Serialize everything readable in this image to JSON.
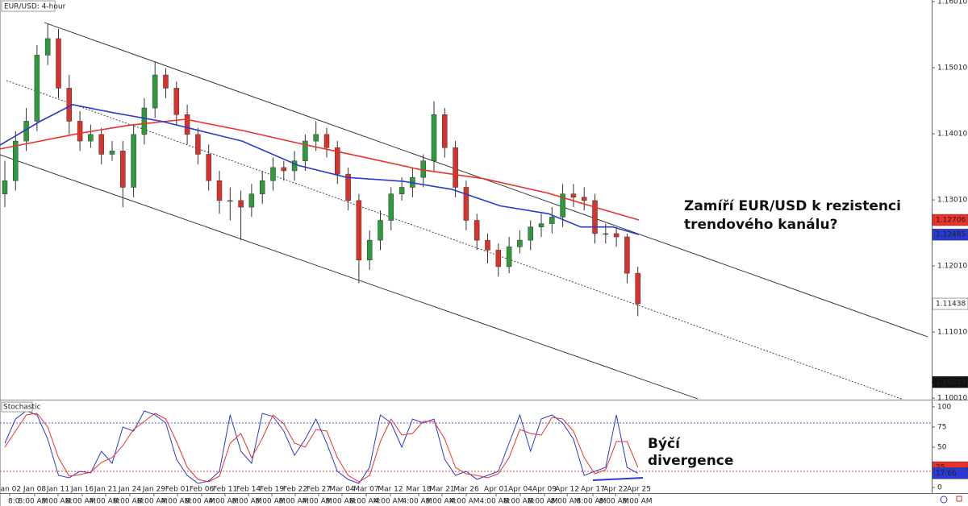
{
  "chart_data": [
    {
      "type": "candlestick",
      "title": "EUR/USD: 4-hour",
      "up_color": "#2f9a3b",
      "down_color": "#d9322c",
      "open": [
        1.131,
        1.133,
        1.139,
        1.142,
        1.152,
        1.1545,
        1.147,
        1.142,
        1.139,
        1.14,
        1.137,
        1.1375,
        1.132,
        1.14,
        1.144,
        1.149,
        1.147,
        1.143,
        1.14,
        1.137,
        1.133,
        1.13,
        1.13,
        1.129,
        1.131,
        1.133,
        1.135,
        1.1345,
        1.136,
        1.139,
        1.14,
        1.138,
        1.134,
        1.13,
        1.121,
        1.124,
        1.127,
        1.131,
        1.132,
        1.1335,
        1.136,
        1.143,
        1.138,
        1.132,
        1.127,
        1.124,
        1.1225,
        1.12,
        1.123,
        1.124,
        1.126,
        1.1265,
        1.1275,
        1.131,
        1.1305,
        1.13,
        1.125,
        1.125,
        1.1245,
        1.119
      ],
      "high": [
        1.136,
        1.1405,
        1.144,
        1.1535,
        1.1567,
        1.156,
        1.149,
        1.1435,
        1.1415,
        1.141,
        1.139,
        1.139,
        1.1415,
        1.1455,
        1.151,
        1.15,
        1.148,
        1.1445,
        1.141,
        1.1385,
        1.1345,
        1.132,
        1.1315,
        1.1325,
        1.1345,
        1.1365,
        1.136,
        1.1375,
        1.14,
        1.142,
        1.141,
        1.139,
        1.135,
        1.131,
        1.1255,
        1.1285,
        1.132,
        1.1335,
        1.135,
        1.137,
        1.145,
        1.144,
        1.139,
        1.133,
        1.128,
        1.125,
        1.1235,
        1.1245,
        1.1255,
        1.127,
        1.128,
        1.129,
        1.1325,
        1.1325,
        1.132,
        1.131,
        1.1265,
        1.126,
        1.125,
        1.12
      ],
      "low": [
        1.129,
        1.1315,
        1.1375,
        1.1405,
        1.1505,
        1.1455,
        1.14,
        1.1375,
        1.138,
        1.1355,
        1.136,
        1.129,
        1.1305,
        1.1385,
        1.1425,
        1.1455,
        1.1415,
        1.1385,
        1.1355,
        1.1315,
        1.128,
        1.127,
        1.124,
        1.1275,
        1.1295,
        1.1315,
        1.133,
        1.133,
        1.1345,
        1.1375,
        1.1365,
        1.1325,
        1.1285,
        1.1175,
        1.1195,
        1.1225,
        1.1255,
        1.13,
        1.1305,
        1.132,
        1.1345,
        1.1365,
        1.1305,
        1.1255,
        1.1225,
        1.1205,
        1.1185,
        1.119,
        1.122,
        1.1225,
        1.1245,
        1.125,
        1.126,
        1.129,
        1.1285,
        1.1235,
        1.1235,
        1.123,
        1.1175,
        1.1125
      ],
      "close": [
        1.133,
        1.139,
        1.142,
        1.152,
        1.1545,
        1.147,
        1.142,
        1.139,
        1.14,
        1.137,
        1.1375,
        1.132,
        1.14,
        1.144,
        1.149,
        1.147,
        1.143,
        1.14,
        1.137,
        1.133,
        1.13,
        1.13,
        1.129,
        1.131,
        1.133,
        1.135,
        1.1345,
        1.136,
        1.139,
        1.14,
        1.138,
        1.134,
        1.13,
        1.121,
        1.124,
        1.127,
        1.131,
        1.132,
        1.1335,
        1.136,
        1.143,
        1.138,
        1.132,
        1.127,
        1.124,
        1.1225,
        1.12,
        1.123,
        1.124,
        1.126,
        1.1265,
        1.1275,
        1.131,
        1.1305,
        1.13,
        1.125,
        1.125,
        1.1245,
        1.119,
        1.11438
      ],
      "series": [
        {
          "color": "#e8322a",
          "x": [
            -0.45,
            7.07,
            11.58,
            16.84,
            22.11,
            28.12,
            33.38,
            38.65,
            44.66,
            50.68,
            55.19,
            59.1
          ],
          "values": [
            1.1378,
            1.1402,
            1.1414,
            1.1423,
            1.1406,
            1.1384,
            1.1366,
            1.1347,
            1.1333,
            1.1311,
            1.1289,
            1.12706
          ]
        },
        {
          "color": "#2a3ad0",
          "x": [
            -0.45,
            3.31,
            6.32,
            10.08,
            14.59,
            17.59,
            22.11,
            27.37,
            31.88,
            37.14,
            41.65,
            46.17,
            50.68,
            53.68,
            56.69,
            59.1
          ],
          "values": [
            1.1384,
            1.142,
            1.1445,
            1.1433,
            1.142,
            1.1408,
            1.139,
            1.1353,
            1.1335,
            1.1329,
            1.1317,
            1.1292,
            1.128,
            1.126,
            1.126,
            1.12485
          ]
        }
      ],
      "price_marker": 1.10253,
      "xlim": [
        -0.45,
        86.39
      ],
      "ylim": [
        1.1,
        1.16034
      ],
      "yticks": [
        {
          "value": 1.1601,
          "label": "1.16010"
        },
        {
          "value": 1.1501,
          "label": "1.15010"
        },
        {
          "value": 1.1401,
          "label": "1.14010"
        },
        {
          "value": 1.1301,
          "label": "1.13010"
        },
        {
          "value": 1.1201,
          "label": "1.12010"
        },
        {
          "value": 1.1101,
          "label": "1.11010"
        },
        {
          "value": 1.1001,
          "label": "1.10010"
        }
      ],
      "annotations": [
        "Zamíří EUR/USD k rezistenci",
        "trendového kanálu?"
      ]
    },
    {
      "type": "line",
      "title": "Stochastic",
      "series": [
        {
          "color": "#2a3ad0",
          "values": [
            55,
            85,
            95,
            90,
            60,
            15,
            12,
            20,
            18,
            45,
            30,
            75,
            70,
            95,
            90,
            80,
            35,
            15,
            5,
            8,
            20,
            90,
            45,
            30,
            92,
            88,
            70,
            40,
            60,
            85,
            55,
            20,
            10,
            5,
            25,
            90,
            80,
            50,
            85,
            80,
            85,
            35,
            15,
            20,
            10,
            15,
            20,
            55,
            90,
            45,
            85,
            90,
            80,
            60,
            15,
            20,
            25,
            90,
            25,
            17.66
          ]
        },
        {
          "color": "#e8322a",
          "values": [
            50,
            70,
            90,
            92,
            75,
            37,
            14,
            16,
            19,
            31,
            37,
            52,
            72,
            82,
            92,
            85,
            57,
            25,
            10,
            7,
            14,
            55,
            67,
            37,
            61,
            90,
            79,
            55,
            50,
            72,
            70,
            37,
            15,
            7,
            15,
            57,
            85,
            65,
            67,
            82,
            82,
            60,
            25,
            17,
            15,
            12,
            17,
            37,
            72,
            67,
            65,
            87,
            85,
            70,
            37,
            17,
            22,
            57,
            57,
            25
          ]
        }
      ],
      "levels": [
        {
          "value": 80,
          "color": "#5060d8"
        },
        {
          "value": 20,
          "color": "#e04040"
        }
      ],
      "xlim": [
        -0.45,
        86.39
      ],
      "ylim": [
        -7,
        108
      ],
      "yticks": [
        100,
        75,
        50,
        25,
        0
      ],
      "xticks": [
        {
          "value": 0.45,
          "label": "Jan 02"
        },
        {
          "value": 2.78,
          "label": "Jan 08"
        },
        {
          "value": 4.96,
          "label": "Jan 11"
        },
        {
          "value": 7.22,
          "label": "Jan 16"
        },
        {
          "value": 9.4,
          "label": "Jan 21"
        },
        {
          "value": 11.65,
          "label": "Jan 24"
        },
        {
          "value": 13.9,
          "label": "Jan 29"
        },
        {
          "value": 16.09,
          "label": "Feb 01"
        },
        {
          "value": 18.35,
          "label": "Feb 06"
        },
        {
          "value": 20.53,
          "label": "Feb 11"
        },
        {
          "value": 22.71,
          "label": "Feb 14"
        },
        {
          "value": 24.89,
          "label": "Feb 19"
        },
        {
          "value": 27.07,
          "label": "Feb 22"
        },
        {
          "value": 29.25,
          "label": "Feb 27"
        },
        {
          "value": 31.43,
          "label": "Mar 04"
        },
        {
          "value": 33.68,
          "label": "Mar 07"
        },
        {
          "value": 35.94,
          "label": "Mar 12"
        },
        {
          "value": 38.57,
          "label": "Mar 18"
        },
        {
          "value": 40.75,
          "label": "Mar 21"
        },
        {
          "value": 43.01,
          "label": "Mar 26"
        },
        {
          "value": 45.79,
          "label": "Apr 01"
        },
        {
          "value": 48.05,
          "label": "Apr 04"
        },
        {
          "value": 50.3,
          "label": "Apr 09"
        },
        {
          "value": 52.41,
          "label": "Apr 12"
        },
        {
          "value": 54.81,
          "label": "Apr 17"
        },
        {
          "value": 56.92,
          "label": "Apr 22"
        },
        {
          "value": 59.1,
          "label": "Apr 25"
        }
      ],
      "x_time_labels": [
        "8:0",
        "8:00 AM",
        "8:00 AM",
        "8:00 AM",
        "4:00 AM",
        "8:00 AM",
        "8:00 AM",
        "4:00 AM",
        "8:00 AM",
        "4:00 AM",
        "8:00 AM",
        "8:00 AM",
        "8:00 AM",
        "4:00 AM",
        "8:00 AM",
        "8:00 AM",
        "4:00 AM",
        "4:00 AM",
        "8:00 AM",
        "4:00 AM",
        "4:00 AM",
        "8:00 AM",
        "8:00 AM",
        "8:00 AM",
        "8:00 AM",
        "8:00 AM",
        "8:00 AM"
      ],
      "annotations": [
        "Býčí",
        "divergence"
      ]
    }
  ]
}
